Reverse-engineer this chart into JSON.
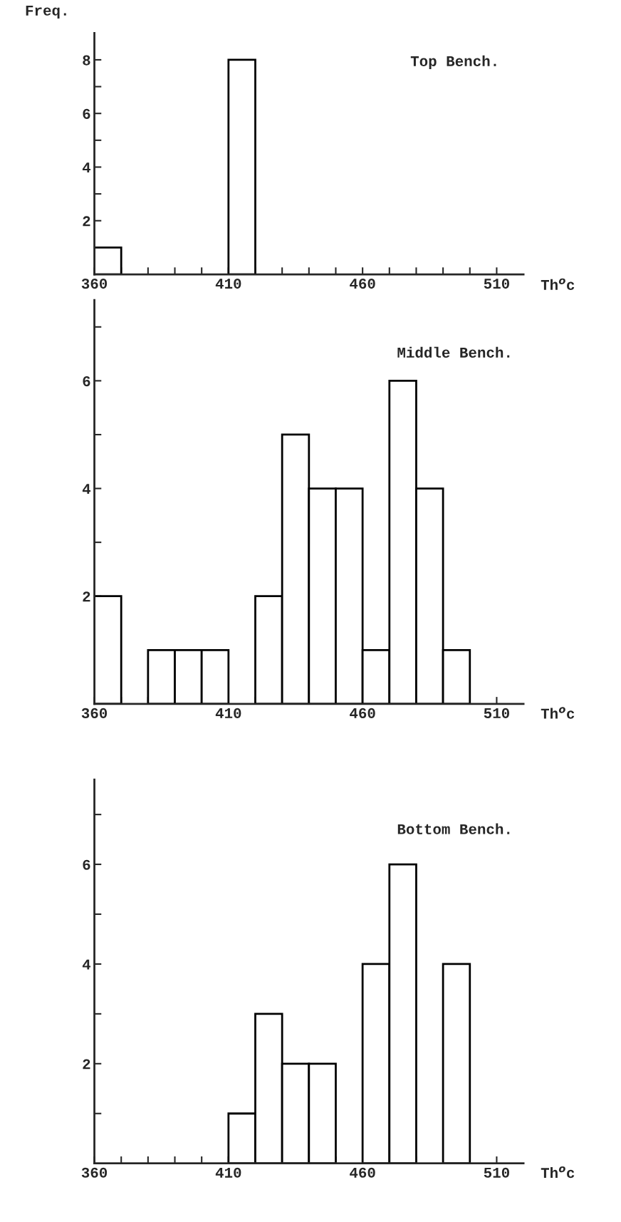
{
  "chart_data": [
    {
      "type": "histogram",
      "ylabel": "Freq.",
      "xlabel": "Th$^{o}$c",
      "annotations": [
        "Top Bench."
      ],
      "bins": [
        360,
        370,
        380,
        390,
        400,
        410,
        420,
        430,
        440,
        450,
        460,
        470,
        480,
        490,
        500,
        510,
        520
      ],
      "values": [
        1,
        0,
        0,
        0,
        0,
        8,
        0,
        0,
        0,
        0,
        0,
        0,
        0,
        0,
        0,
        0
      ],
      "color": "#ffffff",
      "xlim": [
        360,
        520
      ],
      "ylim": [
        0,
        9
      ],
      "xticks": [
        360,
        {
          "value": 370,
          "label": null
        },
        {
          "value": 380,
          "label": null
        },
        {
          "value": 390,
          "label": null
        },
        {
          "value": 400,
          "label": null
        },
        410,
        {
          "value": 420,
          "label": null
        },
        {
          "value": 430,
          "label": null
        },
        {
          "value": 440,
          "label": null
        },
        {
          "value": 450,
          "label": null
        },
        460,
        {
          "value": 470,
          "label": null
        },
        {
          "value": 480,
          "label": null
        },
        {
          "value": 490,
          "label": null
        },
        {
          "value": 500,
          "label": null
        },
        510
      ],
      "yticks": [
        {
          "value": 1,
          "label": null
        },
        2,
        {
          "value": 3,
          "label": null
        },
        4,
        {
          "value": 5,
          "label": null
        },
        6,
        {
          "value": 7,
          "label": null
        },
        8
      ],
      "grid": false
    },
    {
      "type": "histogram",
      "xlabel": "Th$^{o}$c",
      "annotations": [
        "Middle Bench."
      ],
      "bins": [
        360,
        370,
        380,
        390,
        400,
        410,
        420,
        430,
        440,
        450,
        460,
        470,
        480,
        490,
        500,
        510,
        520
      ],
      "values": [
        2,
        0,
        1,
        1,
        1,
        0,
        2,
        5,
        4,
        4,
        1,
        6,
        4,
        1,
        0,
        0
      ],
      "color": "#ffffff",
      "xlim": [
        360,
        520
      ],
      "ylim": [
        0,
        7.5
      ],
      "xticks": [
        360,
        {
          "value": 370,
          "label": null
        },
        {
          "value": 380,
          "label": null
        },
        {
          "value": 390,
          "label": null
        },
        {
          "value": 400,
          "label": null
        },
        410,
        {
          "value": 420,
          "label": null
        },
        {
          "value": 430,
          "label": null
        },
        {
          "value": 440,
          "label": null
        },
        {
          "value": 450,
          "label": null
        },
        460,
        {
          "value": 470,
          "label": null
        },
        {
          "value": 480,
          "label": null
        },
        {
          "value": 490,
          "label": null
        },
        {
          "value": 500,
          "label": null
        },
        510
      ],
      "yticks": [
        {
          "value": 1,
          "label": null
        },
        2,
        {
          "value": 3,
          "label": null
        },
        4,
        {
          "value": 5,
          "label": null
        },
        6,
        {
          "value": 7,
          "label": null
        }
      ],
      "grid": false
    },
    {
      "type": "histogram",
      "xlabel": "Th$^{o}$c",
      "annotations": [
        "Bottom Bench."
      ],
      "bins": [
        360,
        370,
        380,
        390,
        400,
        410,
        420,
        430,
        440,
        450,
        460,
        470,
        480,
        490,
        500,
        510,
        520
      ],
      "values": [
        0,
        0,
        0,
        0,
        0,
        1,
        3,
        2,
        2,
        0,
        4,
        6,
        0,
        4,
        0,
        0
      ],
      "color": "#ffffff",
      "xlim": [
        360,
        520
      ],
      "ylim": [
        0,
        7.7
      ],
      "xticks": [
        360,
        {
          "value": 370,
          "label": null
        },
        {
          "value": 380,
          "label": null
        },
        {
          "value": 390,
          "label": null
        },
        {
          "value": 400,
          "label": null
        },
        410,
        {
          "value": 420,
          "label": null
        },
        {
          "value": 430,
          "label": null
        },
        {
          "value": 440,
          "label": null
        },
        {
          "value": 450,
          "label": null
        },
        460,
        {
          "value": 470,
          "label": null
        },
        {
          "value": 480,
          "label": null
        },
        {
          "value": 490,
          "label": null
        },
        {
          "value": 500,
          "label": null
        },
        510
      ],
      "yticks": [
        {
          "value": 1,
          "label": null
        },
        2,
        {
          "value": 3,
          "label": null
        },
        4,
        {
          "value": 5,
          "label": null
        },
        6,
        {
          "value": 7,
          "label": null
        }
      ],
      "grid": false
    }
  ]
}
